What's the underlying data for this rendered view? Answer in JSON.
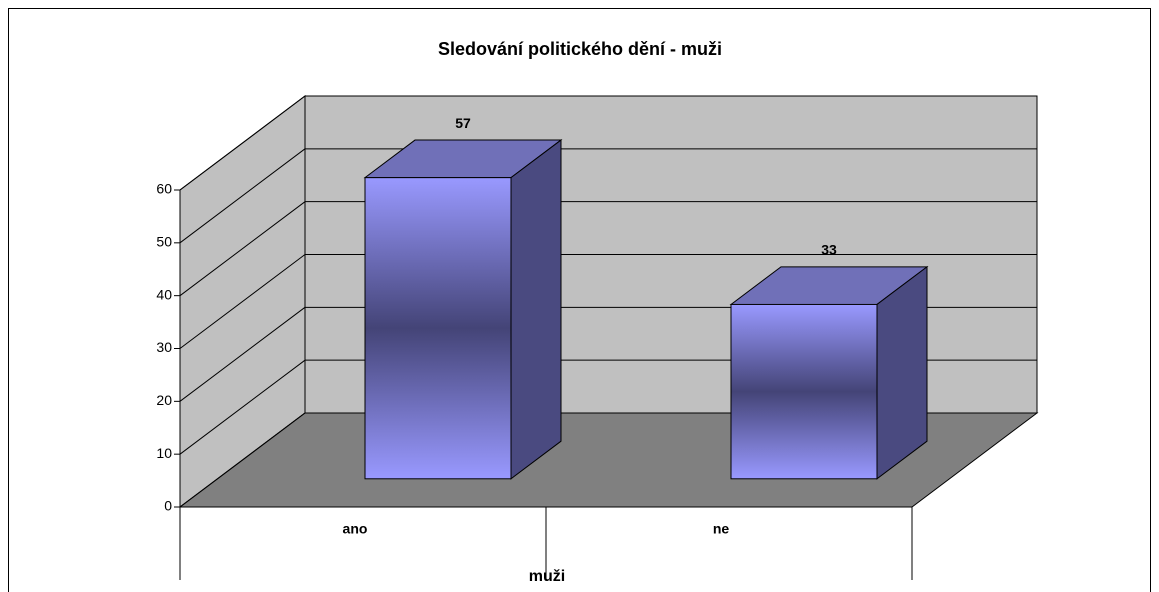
{
  "chart_data": {
    "type": "bar3d",
    "title": "Sledování politického dění - muži",
    "categories": [
      "ano",
      "ne"
    ],
    "values": [
      57,
      33
    ],
    "color": "#9999ff",
    "x_label": "muži",
    "ylim": [
      0,
      60
    ],
    "yticks": [
      0,
      10,
      20,
      30,
      40,
      50,
      60
    ],
    "grid": true
  }
}
